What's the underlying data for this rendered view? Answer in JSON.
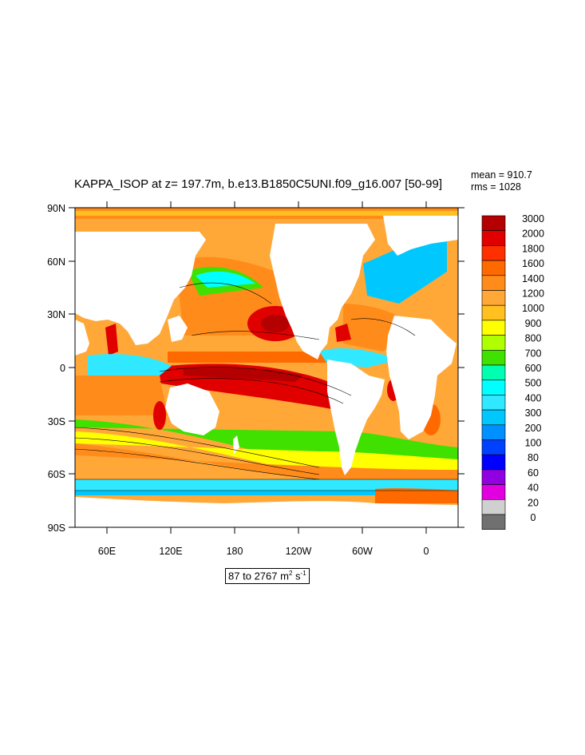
{
  "title": "KAPPA_ISOP at z= 197.7m, b.e13.B1850C5UNI.f09_g16.007 [50-99]",
  "stats": {
    "mean": "mean = 910.7",
    "rms": "rms = 1028"
  },
  "range": {
    "min": "87",
    "to": "to",
    "max": "2767",
    "unit_m": "m",
    "unit_m_exp": "2",
    "unit_s": "s",
    "unit_s_exp": "-1"
  },
  "axes": {
    "y_ticks": [
      "90N",
      "60N",
      "30N",
      "0",
      "30S",
      "60S",
      "90S"
    ],
    "x_ticks": [
      "60E",
      "120E",
      "180",
      "120W",
      "60W",
      "0"
    ]
  },
  "colorbar": {
    "labels": [
      "3000",
      "2000",
      "1800",
      "1600",
      "1400",
      "1200",
      "1000",
      "900",
      "800",
      "700",
      "600",
      "500",
      "400",
      "300",
      "200",
      "100",
      "80",
      "60",
      "40",
      "20",
      "0"
    ],
    "colors": [
      "#b40000",
      "#e00000",
      "#ff3000",
      "#ff6a00",
      "#ff8c1a",
      "#ffa838",
      "#ffc020",
      "#ffff00",
      "#b0ff00",
      "#40e000",
      "#00ffb0",
      "#00ffff",
      "#30e8ff",
      "#00c8ff",
      "#0090ff",
      "#0040ff",
      "#0000ff",
      "#9000e0",
      "#e000e0",
      "#d0d0d0",
      "#707070"
    ]
  }
}
